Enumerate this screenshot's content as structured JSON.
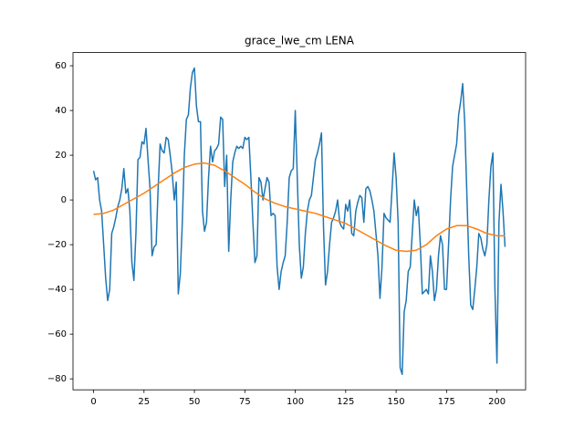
{
  "chart_data": {
    "type": "line",
    "title": "grace_lwe_cm LENA",
    "xlim": [
      -10.2,
      214.2
    ],
    "ylim": [
      -84.9,
      65.9
    ],
    "xticks": [
      0,
      25,
      50,
      75,
      100,
      125,
      150,
      175,
      200
    ],
    "yticks": [
      {
        "value": -80,
        "label": "−80"
      },
      {
        "value": -60,
        "label": "−60"
      },
      {
        "value": -40,
        "label": "−40"
      },
      {
        "value": -20,
        "label": "−20"
      },
      0,
      20,
      40,
      60
    ],
    "grid": false,
    "series": [
      {
        "color": "#1f77b4",
        "values": [
          13,
          9,
          10,
          0,
          -5,
          -20,
          -35,
          -45,
          -40,
          -15,
          -12,
          -8,
          -3,
          0,
          5,
          14,
          3,
          5,
          -5,
          -28,
          -36,
          -15,
          18,
          19,
          26,
          25,
          32,
          18,
          5,
          -25,
          -21,
          -20,
          5,
          25,
          22,
          21,
          28,
          27,
          20,
          12,
          0,
          8,
          -42,
          -33,
          -10,
          20,
          36,
          38,
          50,
          57,
          59,
          42,
          35,
          35,
          -5,
          -14,
          -10,
          10,
          24,
          17,
          22,
          23,
          25,
          37,
          36,
          6,
          20,
          -23,
          0,
          17,
          21,
          24,
          23,
          24,
          23,
          28,
          27,
          28,
          10,
          -10,
          -28,
          -25,
          10,
          8,
          0,
          5,
          10,
          8,
          -7,
          -6,
          -7,
          -30,
          -40,
          -32,
          -28,
          -25,
          -10,
          10,
          13,
          14,
          40,
          10,
          -20,
          -35,
          -30,
          -15,
          -5,
          0,
          2,
          10,
          18,
          21,
          25,
          30,
          -12,
          -38,
          -32,
          -20,
          -10,
          -8,
          -5,
          0,
          -10,
          -12,
          -13,
          -2,
          -5,
          0,
          -15,
          -16,
          -5,
          -1,
          2,
          1,
          -10,
          5,
          6,
          4,
          0,
          -5,
          -15,
          -25,
          -44,
          -30,
          -6,
          -8,
          -9,
          -10,
          5,
          21,
          10,
          -10,
          -75,
          -78,
          -50,
          -45,
          -32,
          -30,
          -15,
          0,
          -7,
          -3,
          -20,
          -42,
          -41,
          -40,
          -42,
          -25,
          -32,
          -45,
          -40,
          -25,
          -16,
          -20,
          -40,
          -40,
          -20,
          0,
          15,
          20,
          25,
          38,
          44,
          52,
          35,
          5,
          -25,
          -47,
          -49,
          -40,
          -30,
          -15,
          -17,
          -22,
          -25,
          -20,
          0,
          15,
          21,
          -40,
          -73,
          -10,
          7,
          -5,
          -21
        ]
      },
      {
        "color": "#ff7f0e",
        "x": [
          0,
          5,
          10,
          15,
          20,
          25,
          30,
          35,
          40,
          45,
          50,
          55,
          60,
          65,
          70,
          75,
          80,
          85,
          90,
          95,
          100,
          105,
          110,
          115,
          120,
          125,
          130,
          135,
          140,
          145,
          150,
          155,
          160,
          165,
          170,
          175,
          180,
          185,
          190,
          195,
          200,
          204
        ],
        "values": [
          -6.5,
          -6,
          -4.5,
          -2,
          0.5,
          3,
          6,
          9,
          12,
          14.5,
          16,
          16.5,
          15.5,
          13,
          10,
          7,
          3.5,
          0.5,
          -1.5,
          -3,
          -4,
          -5,
          -6,
          -7.5,
          -9,
          -10.5,
          -13,
          -15.5,
          -18,
          -20.5,
          -22.5,
          -23,
          -22.5,
          -20,
          -16,
          -13,
          -11.5,
          -11.5,
          -13,
          -15,
          -16,
          -16
        ]
      }
    ]
  }
}
